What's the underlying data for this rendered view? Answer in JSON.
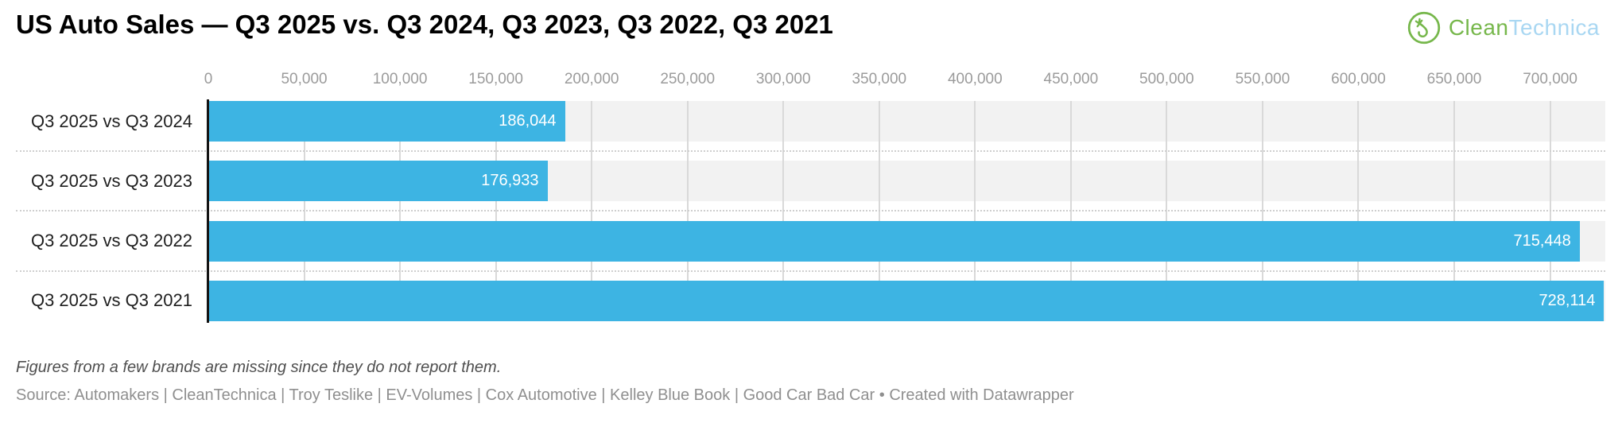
{
  "title": "US Auto Sales — Q3 2025 vs. Q3 2024, Q3 2023, Q3 2022, Q3 2021",
  "logo": {
    "clean": "Clean",
    "technica": "Technica",
    "icon": "wind-turbine-circle-icon",
    "green": "#76B74B",
    "light_blue": "#A9D7F2"
  },
  "chart_data": {
    "type": "bar",
    "orientation": "horizontal",
    "title": "US Auto Sales — Q3 2025 vs. Q3 2024, Q3 2023, Q3 2022, Q3 2021",
    "categories": [
      "Q3 2025 vs Q3 2024",
      "Q3 2025 vs Q3 2023",
      "Q3 2025 vs Q3 2022",
      "Q3 2025 vs Q3 2021"
    ],
    "values": [
      186044,
      176933,
      715448,
      728114
    ],
    "value_labels": [
      "186,044",
      "176,933",
      "715,448",
      "728,114"
    ],
    "x_ticks": [
      {
        "value": 0,
        "label": "0"
      },
      {
        "value": 50000,
        "label": "50,000"
      },
      {
        "value": 100000,
        "label": "100,000"
      },
      {
        "value": 150000,
        "label": "150,000"
      },
      {
        "value": 200000,
        "label": "200,000"
      },
      {
        "value": 250000,
        "label": "250,000"
      },
      {
        "value": 300000,
        "label": "300,000"
      },
      {
        "value": 350000,
        "label": "350,000"
      },
      {
        "value": 400000,
        "label": "400,000"
      },
      {
        "value": 450000,
        "label": "450,000"
      },
      {
        "value": 500000,
        "label": "500,000"
      },
      {
        "value": 550000,
        "label": "550,000"
      },
      {
        "value": 600000,
        "label": "600,000"
      },
      {
        "value": 650000,
        "label": "650,000"
      },
      {
        "value": 700000,
        "label": "700,000"
      }
    ],
    "xlim": [
      0,
      728800
    ],
    "bar_color": "#3DB4E3",
    "stripe_color": "#F2F2F2",
    "grid": true,
    "legend": "none"
  },
  "notes": "Figures from a few brands are missing since they do not report them.",
  "source": "Source: Automakers | CleanTechnica | Troy Teslike | EV-Volumes | Cox Automotive | Kelley Blue Book | Good Car Bad Car • Created with Datawrapper"
}
